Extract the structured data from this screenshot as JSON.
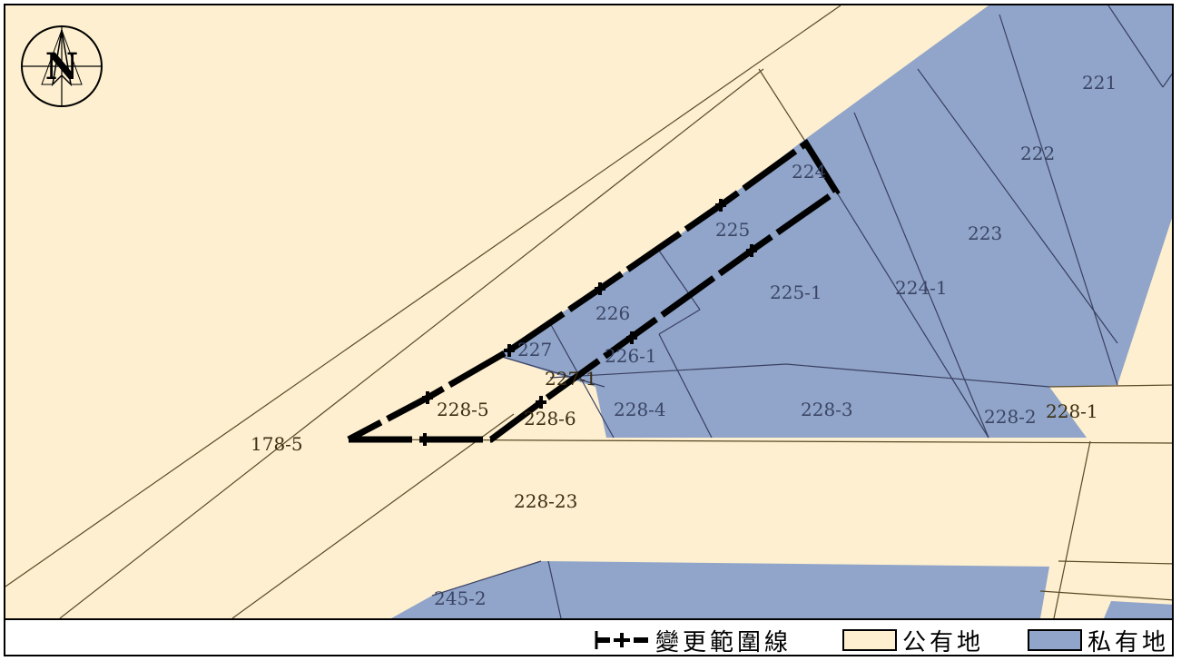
{
  "colors": {
    "public_land": "#fdefcf",
    "private_land": "#90a5c9",
    "parcel_line_public": "#5a4a26",
    "parcel_line_private": "#3a3f63",
    "label_public": "#3b2e12",
    "label_private": "#3b4566",
    "boundary": "#000000"
  },
  "compass": {
    "letter": "N",
    "icon": "north-arrow-icon"
  },
  "parcels": {
    "p221": "221",
    "p222": "222",
    "p223": "223",
    "p224": "224",
    "p224_1": "224-1",
    "p225": "225",
    "p225_1": "225-1",
    "p226": "226",
    "p226_1": "226-1",
    "p227": "227",
    "p227_1": "227-1",
    "p228_1": "228-1",
    "p228_2": "228-2",
    "p228_3": "228-3",
    "p228_4": "228-4",
    "p228_5": "228-5",
    "p228_6": "228-6",
    "p228_23": "228-23",
    "p178_5": "178-5",
    "p245_2": "245-2"
  },
  "legend": {
    "boundary_label": "變更範圍線",
    "public_label": "公有地",
    "private_label": "私有地"
  }
}
